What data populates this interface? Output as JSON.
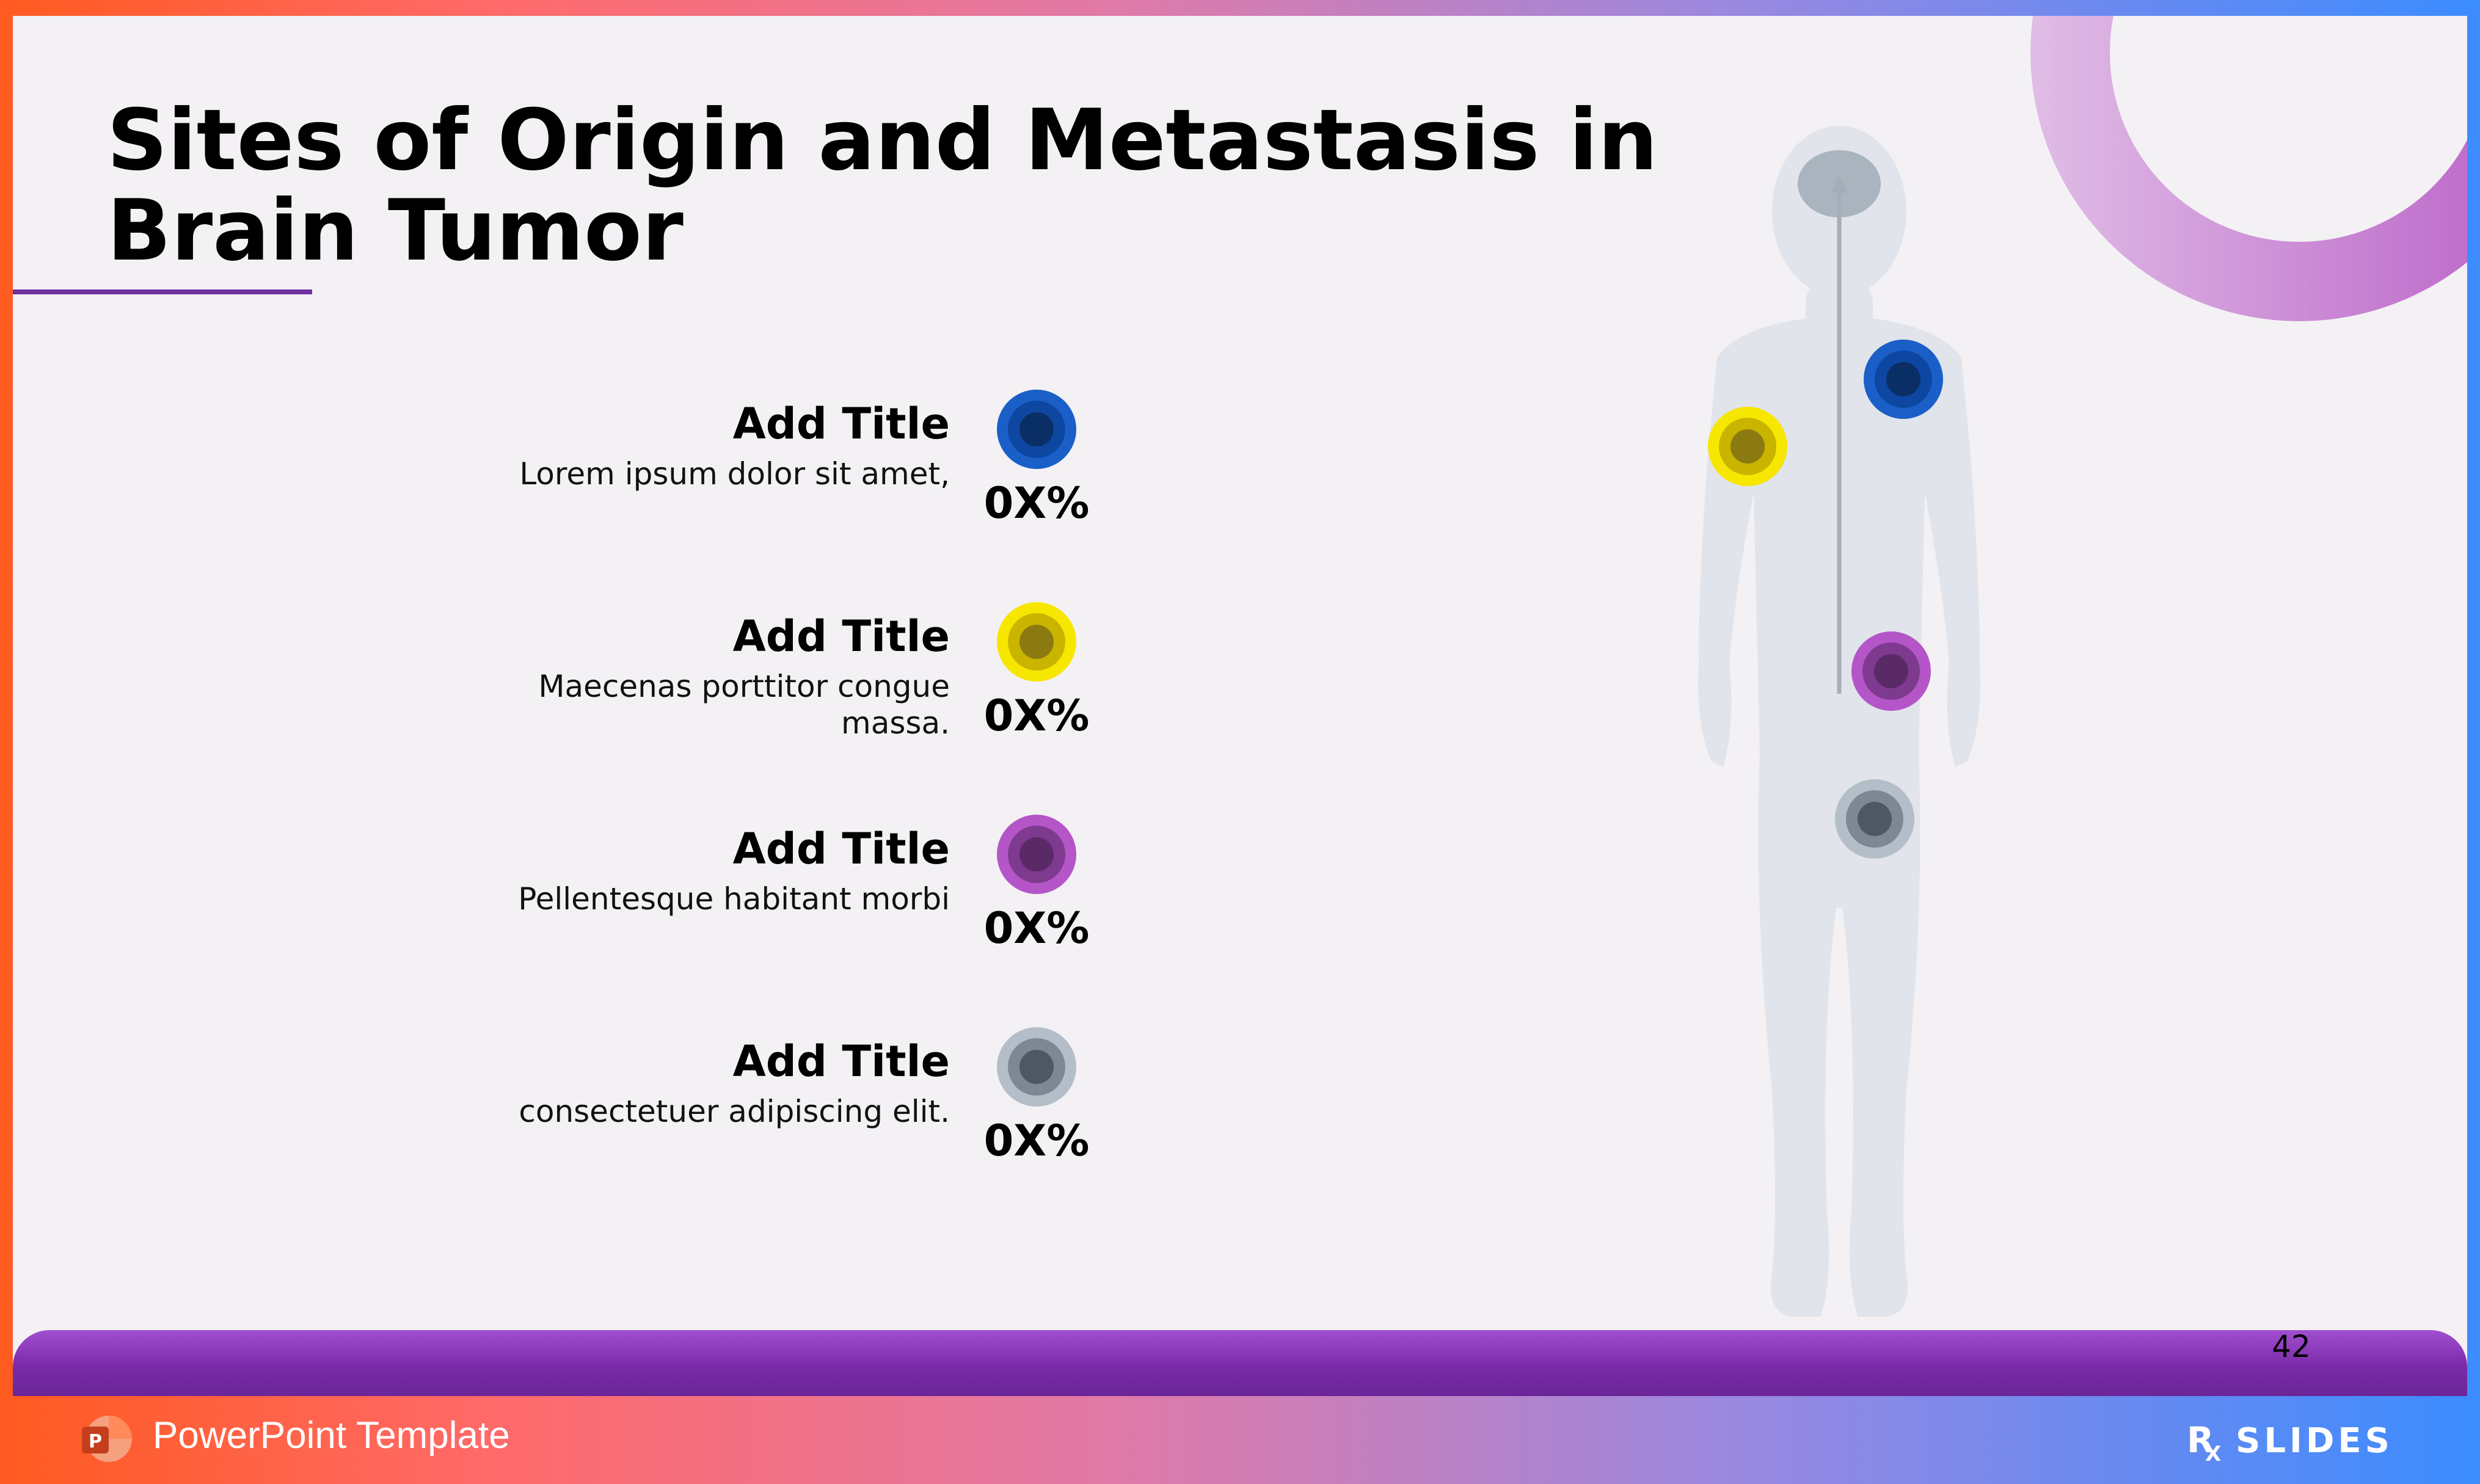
{
  "slide": {
    "title": "Sites of Origin and Metastasis in\nBrain Tumor",
    "page_number": "42"
  },
  "items": [
    {
      "title": "Add Title",
      "description": "Lorem ipsum dolor sit amet,",
      "percent": "0X%",
      "color": "#1a5fc8",
      "mid_color": "#0d47a1",
      "core_color": "#0a2e66"
    },
    {
      "title": "Add Title",
      "description": "Maecenas porttitor congue massa.",
      "percent": "0X%",
      "color": "#f7e600",
      "mid_color": "#c9b400",
      "core_color": "#8a7a10"
    },
    {
      "title": "Add Title",
      "description": "Pellentesque habitant morbi",
      "percent": "0X%",
      "color": "#b455c8",
      "mid_color": "#7e3a8e",
      "core_color": "#5a2a66"
    },
    {
      "title": "Add Title",
      "description": "consectetuer adipiscing elit.",
      "percent": "0X%",
      "color": "#b4bec8",
      "mid_color": "#7d8894",
      "core_color": "#4e5864"
    }
  ],
  "footer": {
    "label": "PowerPoint Template",
    "brand": "RX SLIDES",
    "icons": [
      "powerpoint-icon",
      "rxslides-logo"
    ]
  },
  "colors": {
    "accent_purple": "#7030a0",
    "slide_background": "#f3f1f4",
    "body_silhouette": "#e1e4ea"
  }
}
